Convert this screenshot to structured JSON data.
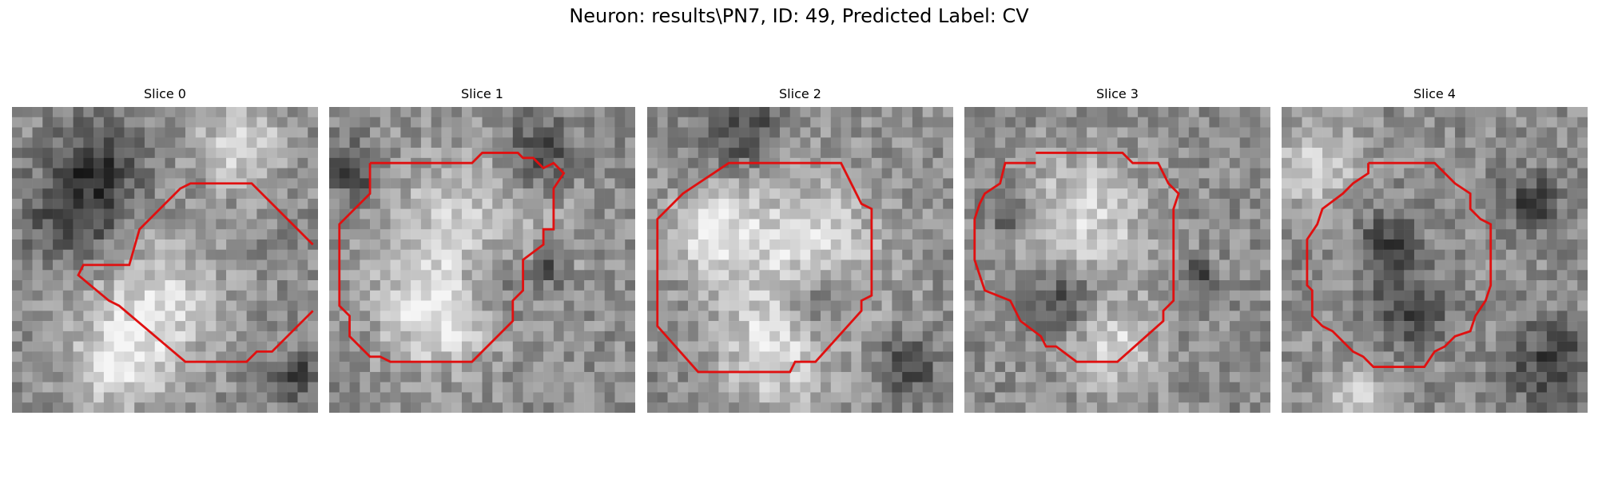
{
  "figure": {
    "title": "Neuron: results\\PN7, ID: 49, Predicted Label: CV",
    "panels": [
      {
        "title": "Slice 0"
      },
      {
        "title": "Slice 1"
      },
      {
        "title": "Slice 2"
      },
      {
        "title": "Slice 3"
      },
      {
        "title": "Slice 4"
      }
    ],
    "contour_color": "#e01010",
    "colormap": "grayscale"
  }
}
